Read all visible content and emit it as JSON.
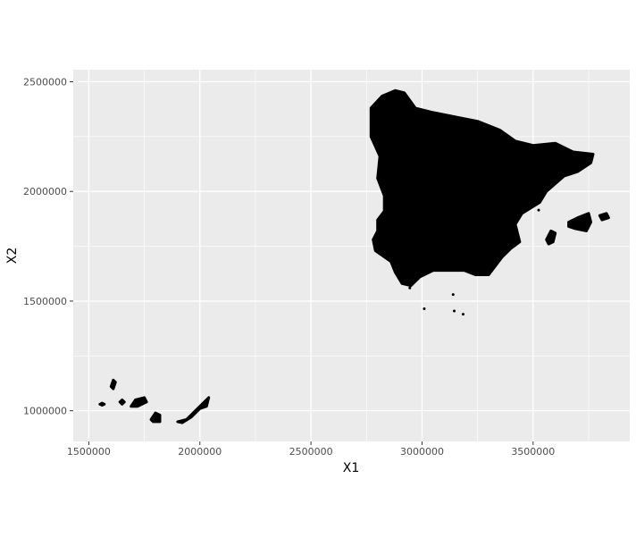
{
  "chart_data": {
    "type": "scatter",
    "xlabel": "X1",
    "ylabel": "X2",
    "xlim": [
      1430000,
      3935000
    ],
    "ylim": [
      860000,
      2555000
    ],
    "x_ticks": [
      1500000,
      2000000,
      2500000,
      3000000,
      3500000
    ],
    "y_ticks": [
      1000000,
      1500000,
      2000000,
      2500000
    ],
    "x_tick_labels": [
      "1500000",
      "2000000",
      "2500000",
      "3000000",
      "3500000"
    ],
    "y_tick_labels": [
      "1000000",
      "1500000",
      "2000000",
      "2500000"
    ],
    "grid": true,
    "legend": "none",
    "point_color": "#000000",
    "panel_background": "#ebebeb",
    "grid_color": "#ffffff",
    "regions": [
      {
        "points": [
          [
            2770000,
            2380000
          ],
          [
            2820000,
            2435000
          ],
          [
            2880000,
            2460000
          ],
          [
            2920000,
            2450000
          ],
          [
            2970000,
            2380000
          ],
          [
            3050000,
            2360000
          ],
          [
            3150000,
            2340000
          ],
          [
            3250000,
            2320000
          ],
          [
            3350000,
            2280000
          ],
          [
            3420000,
            2230000
          ],
          [
            3500000,
            2210000
          ],
          [
            3600000,
            2220000
          ],
          [
            3680000,
            2180000
          ],
          [
            3770000,
            2170000
          ],
          [
            3760000,
            2130000
          ],
          [
            3700000,
            2090000
          ],
          [
            3640000,
            2070000
          ],
          [
            3560000,
            2000000
          ],
          [
            3530000,
            1950000
          ],
          [
            3450000,
            1900000
          ],
          [
            3420000,
            1850000
          ],
          [
            3440000,
            1770000
          ],
          [
            3400000,
            1740000
          ],
          [
            3360000,
            1700000
          ],
          [
            3300000,
            1620000
          ],
          [
            3240000,
            1620000
          ],
          [
            3190000,
            1640000
          ],
          [
            3120000,
            1640000
          ],
          [
            3050000,
            1640000
          ],
          [
            2990000,
            1610000
          ],
          [
            2950000,
            1570000
          ],
          [
            2910000,
            1580000
          ],
          [
            2880000,
            1630000
          ],
          [
            2860000,
            1680000
          ],
          [
            2790000,
            1730000
          ],
          [
            2780000,
            1780000
          ],
          [
            2800000,
            1820000
          ],
          [
            2800000,
            1870000
          ],
          [
            2830000,
            1910000
          ],
          [
            2830000,
            1980000
          ],
          [
            2800000,
            2060000
          ],
          [
            2810000,
            2160000
          ],
          [
            2770000,
            2250000
          ],
          [
            2770000,
            2320000
          ]
        ]
      },
      {
        "points": [
          [
            3660000,
            1860000
          ],
          [
            3700000,
            1880000
          ],
          [
            3750000,
            1900000
          ],
          [
            3760000,
            1860000
          ],
          [
            3740000,
            1820000
          ],
          [
            3690000,
            1830000
          ],
          [
            3660000,
            1840000
          ]
        ]
      },
      {
        "points": [
          [
            3800000,
            1890000
          ],
          [
            3830000,
            1900000
          ],
          [
            3840000,
            1880000
          ],
          [
            3810000,
            1870000
          ]
        ]
      },
      {
        "points": [
          [
            3560000,
            1780000
          ],
          [
            3580000,
            1820000
          ],
          [
            3600000,
            1810000
          ],
          [
            3590000,
            1770000
          ],
          [
            3570000,
            1760000
          ]
        ]
      },
      {
        "points": [
          [
            1900000,
            950000
          ],
          [
            1940000,
            960000
          ],
          [
            1980000,
            1000000
          ],
          [
            2010000,
            1030000
          ],
          [
            2040000,
            1060000
          ],
          [
            2030000,
            1020000
          ],
          [
            2000000,
            1010000
          ],
          [
            1960000,
            970000
          ],
          [
            1920000,
            945000
          ]
        ]
      },
      {
        "points": [
          [
            1780000,
            960000
          ],
          [
            1800000,
            990000
          ],
          [
            1820000,
            980000
          ],
          [
            1820000,
            950000
          ],
          [
            1790000,
            950000
          ]
        ]
      },
      {
        "points": [
          [
            1690000,
            1020000
          ],
          [
            1710000,
            1050000
          ],
          [
            1750000,
            1060000
          ],
          [
            1760000,
            1040000
          ],
          [
            1720000,
            1020000
          ]
        ]
      },
      {
        "points": [
          [
            1600000,
            1110000
          ],
          [
            1610000,
            1140000
          ],
          [
            1620000,
            1130000
          ],
          [
            1610000,
            1100000
          ]
        ]
      },
      {
        "points": [
          [
            1640000,
            1040000
          ],
          [
            1650000,
            1050000
          ],
          [
            1660000,
            1040000
          ],
          [
            1650000,
            1030000
          ]
        ]
      },
      {
        "points": [
          [
            1550000,
            1030000
          ],
          [
            1560000,
            1035000
          ],
          [
            1570000,
            1030000
          ],
          [
            1560000,
            1025000
          ]
        ]
      }
    ],
    "points": [
      [
        3010000,
        1465000
      ],
      [
        3145000,
        1455000
      ],
      [
        3185000,
        1440000
      ],
      [
        3525000,
        1915000
      ],
      [
        3140000,
        1530000
      ],
      [
        2945000,
        1560000
      ]
    ]
  }
}
